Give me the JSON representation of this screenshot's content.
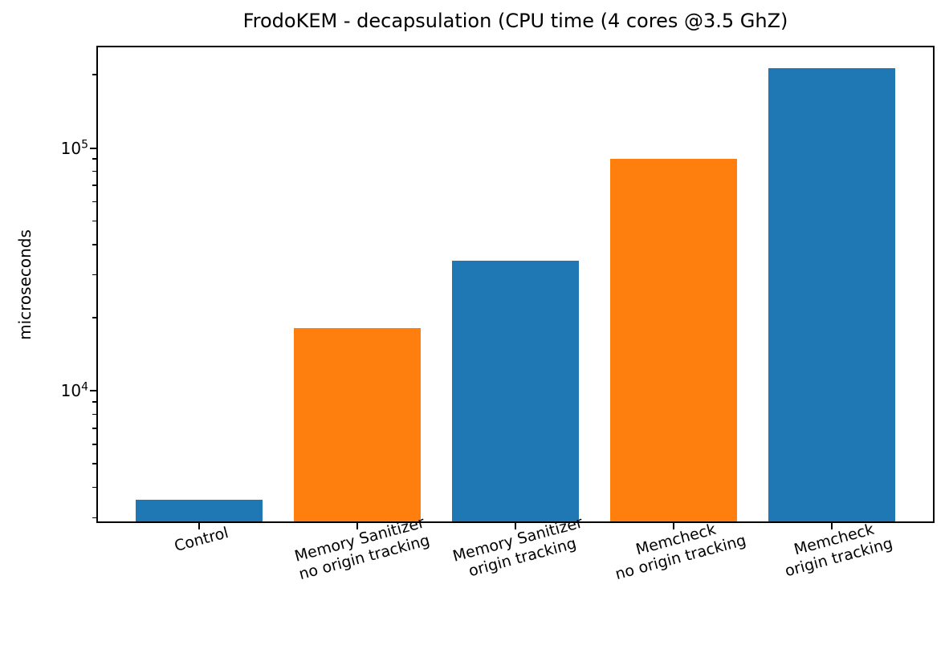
{
  "chart_data": {
    "type": "bar",
    "title": "FrodoKEM - decapsulation (CPU time (4 cores @3.5 GhZ)",
    "xlabel": "",
    "ylabel": "microseconds",
    "categories": [
      "Control",
      "Memory Sanitizer\nno origin tracking",
      "Memory Sanitizer\norigin tracking",
      "Memcheck\nno origin tracking",
      "Memcheck\norigin tracking"
    ],
    "values": [
      3550,
      18100,
      34400,
      90500,
      214000
    ],
    "bar_colors": [
      "#1f77b4",
      "#ff7f0e",
      "#1f77b4",
      "#ff7f0e",
      "#1f77b4"
    ],
    "yscale": "log",
    "ylim": [
      2900,
      260000
    ],
    "y_major_tick_exponents": [
      4,
      5
    ],
    "x_tick_rotation_deg": 15,
    "grid": false,
    "legend": false,
    "colors": {
      "bar_blue": "#1f77b4",
      "bar_orange": "#ff7f0e",
      "axis": "#000000",
      "background": "#ffffff",
      "text": "#000000"
    }
  }
}
